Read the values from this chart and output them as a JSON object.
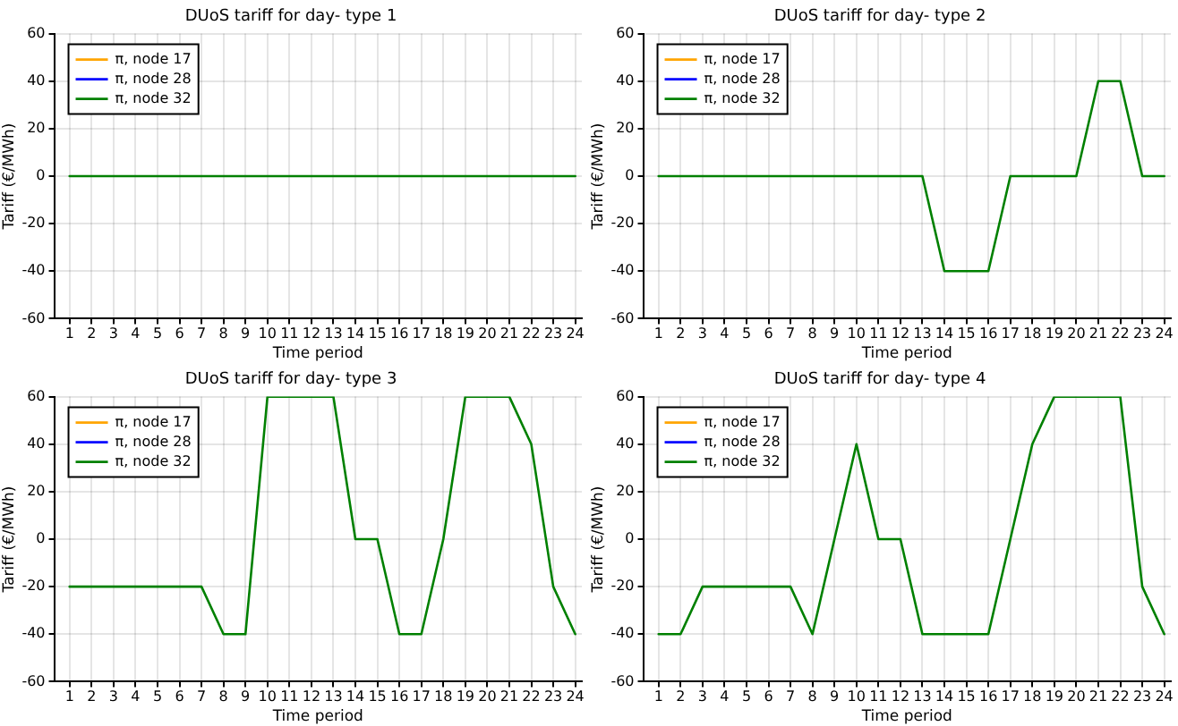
{
  "chart_data": [
    {
      "type": "line",
      "title": "DUoS tariff for day- type 1",
      "xlabel": "Time period",
      "ylabel": "Tariff (€/MWh)",
      "x": [
        1,
        2,
        3,
        4,
        5,
        6,
        7,
        8,
        9,
        10,
        11,
        12,
        13,
        14,
        15,
        16,
        17,
        18,
        19,
        20,
        21,
        22,
        23,
        24
      ],
      "xlim": [
        0.3,
        24.3
      ],
      "xticks": [
        1,
        2,
        3,
        4,
        5,
        6,
        7,
        8,
        9,
        10,
        11,
        12,
        13,
        14,
        15,
        16,
        17,
        18,
        19,
        20,
        21,
        22,
        23,
        24
      ],
      "ylim": [
        -60,
        60
      ],
      "yticks": [
        -60,
        -40,
        -20,
        0,
        20,
        40,
        60
      ],
      "grid": true,
      "legend": "top left",
      "series": [
        {
          "name": "π, node 17",
          "color": "#ffa500",
          "values": [
            null,
            null,
            null,
            null,
            null,
            null,
            null,
            null,
            null,
            null,
            null,
            null,
            null,
            null,
            null,
            null,
            null,
            null,
            null,
            null,
            null,
            null,
            null,
            null
          ]
        },
        {
          "name": "π, node 28",
          "color": "#0000ff",
          "values": [
            null,
            null,
            null,
            null,
            null,
            null,
            null,
            null,
            null,
            null,
            null,
            null,
            null,
            null,
            null,
            null,
            null,
            null,
            null,
            null,
            null,
            null,
            null,
            null
          ]
        },
        {
          "name": "π, node 32",
          "color": "#008000",
          "values": [
            0,
            0,
            0,
            0,
            0,
            0,
            0,
            0,
            0,
            0,
            0,
            0,
            0,
            0,
            0,
            0,
            0,
            0,
            0,
            0,
            0,
            0,
            0,
            0
          ]
        }
      ]
    },
    {
      "type": "line",
      "title": "DUoS tariff for day- type 2",
      "xlabel": "Time period",
      "ylabel": "Tariff (€/MWh)",
      "x": [
        1,
        2,
        3,
        4,
        5,
        6,
        7,
        8,
        9,
        10,
        11,
        12,
        13,
        14,
        15,
        16,
        17,
        18,
        19,
        20,
        21,
        22,
        23,
        24
      ],
      "xlim": [
        0.3,
        24.3
      ],
      "xticks": [
        1,
        2,
        3,
        4,
        5,
        6,
        7,
        8,
        9,
        10,
        11,
        12,
        13,
        14,
        15,
        16,
        17,
        18,
        19,
        20,
        21,
        22,
        23,
        24
      ],
      "ylim": [
        -60,
        60
      ],
      "yticks": [
        -60,
        -40,
        -20,
        0,
        20,
        40,
        60
      ],
      "grid": true,
      "legend": "top left",
      "series": [
        {
          "name": "π, node 17",
          "color": "#ffa500",
          "values": [
            null,
            null,
            null,
            null,
            null,
            null,
            null,
            null,
            null,
            null,
            null,
            null,
            null,
            null,
            null,
            null,
            null,
            null,
            null,
            null,
            null,
            null,
            null,
            null
          ]
        },
        {
          "name": "π, node 28",
          "color": "#0000ff",
          "values": [
            null,
            null,
            null,
            null,
            null,
            null,
            null,
            null,
            null,
            null,
            null,
            null,
            null,
            null,
            null,
            null,
            null,
            null,
            null,
            null,
            null,
            null,
            null,
            null
          ]
        },
        {
          "name": "π, node 32",
          "color": "#008000",
          "values": [
            0,
            0,
            0,
            0,
            0,
            0,
            0,
            0,
            0,
            0,
            0,
            0,
            0,
            -40,
            -40,
            -40,
            0,
            0,
            0,
            0,
            40,
            40,
            0,
            0
          ]
        }
      ]
    },
    {
      "type": "line",
      "title": "DUoS tariff for day- type 3",
      "xlabel": "Time period",
      "ylabel": "Tariff (€/MWh)",
      "x": [
        1,
        2,
        3,
        4,
        5,
        6,
        7,
        8,
        9,
        10,
        11,
        12,
        13,
        14,
        15,
        16,
        17,
        18,
        19,
        20,
        21,
        22,
        23,
        24
      ],
      "xlim": [
        0.3,
        24.3
      ],
      "xticks": [
        1,
        2,
        3,
        4,
        5,
        6,
        7,
        8,
        9,
        10,
        11,
        12,
        13,
        14,
        15,
        16,
        17,
        18,
        19,
        20,
        21,
        22,
        23,
        24
      ],
      "ylim": [
        -60,
        60
      ],
      "yticks": [
        -60,
        -40,
        -20,
        0,
        20,
        40,
        60
      ],
      "grid": true,
      "legend": "top left",
      "series": [
        {
          "name": "π, node 17",
          "color": "#ffa500",
          "values": [
            null,
            null,
            null,
            null,
            null,
            null,
            null,
            null,
            null,
            null,
            null,
            null,
            null,
            null,
            null,
            null,
            null,
            null,
            null,
            null,
            null,
            null,
            null,
            null
          ]
        },
        {
          "name": "π, node 28",
          "color": "#0000ff",
          "values": [
            null,
            null,
            null,
            null,
            null,
            null,
            null,
            null,
            null,
            null,
            null,
            null,
            null,
            null,
            null,
            null,
            null,
            null,
            null,
            null,
            null,
            null,
            null,
            null
          ]
        },
        {
          "name": "π, node 32",
          "color": "#008000",
          "values": [
            -20,
            -20,
            -20,
            -20,
            -20,
            -20,
            -20,
            -40,
            -40,
            60,
            60,
            60,
            60,
            0,
            0,
            -40,
            -40,
            0,
            60,
            60,
            60,
            40,
            -20,
            -40
          ]
        }
      ]
    },
    {
      "type": "line",
      "title": "DUoS tariff for day- type 4",
      "xlabel": "Time period",
      "ylabel": "Tariff (€/MWh)",
      "x": [
        1,
        2,
        3,
        4,
        5,
        6,
        7,
        8,
        9,
        10,
        11,
        12,
        13,
        14,
        15,
        16,
        17,
        18,
        19,
        20,
        21,
        22,
        23,
        24
      ],
      "xlim": [
        0.3,
        24.3
      ],
      "xticks": [
        1,
        2,
        3,
        4,
        5,
        6,
        7,
        8,
        9,
        10,
        11,
        12,
        13,
        14,
        15,
        16,
        17,
        18,
        19,
        20,
        21,
        22,
        23,
        24
      ],
      "ylim": [
        -60,
        60
      ],
      "yticks": [
        -60,
        -40,
        -20,
        0,
        20,
        40,
        60
      ],
      "grid": true,
      "legend": "top left",
      "series": [
        {
          "name": "π, node 17",
          "color": "#ffa500",
          "values": [
            null,
            null,
            null,
            null,
            null,
            null,
            null,
            null,
            null,
            null,
            null,
            null,
            null,
            null,
            null,
            null,
            null,
            null,
            null,
            null,
            null,
            null,
            null,
            null
          ]
        },
        {
          "name": "π, node 28",
          "color": "#0000ff",
          "values": [
            null,
            null,
            null,
            null,
            null,
            null,
            null,
            null,
            null,
            null,
            null,
            null,
            null,
            null,
            null,
            null,
            null,
            null,
            null,
            null,
            null,
            null,
            null,
            null
          ]
        },
        {
          "name": "π, node 32",
          "color": "#008000",
          "values": [
            -40,
            -40,
            -20,
            -20,
            -20,
            -20,
            -20,
            -40,
            0,
            40,
            0,
            0,
            -40,
            -40,
            -40,
            -40,
            0,
            40,
            60,
            60,
            60,
            60,
            -20,
            -40
          ]
        }
      ]
    }
  ]
}
